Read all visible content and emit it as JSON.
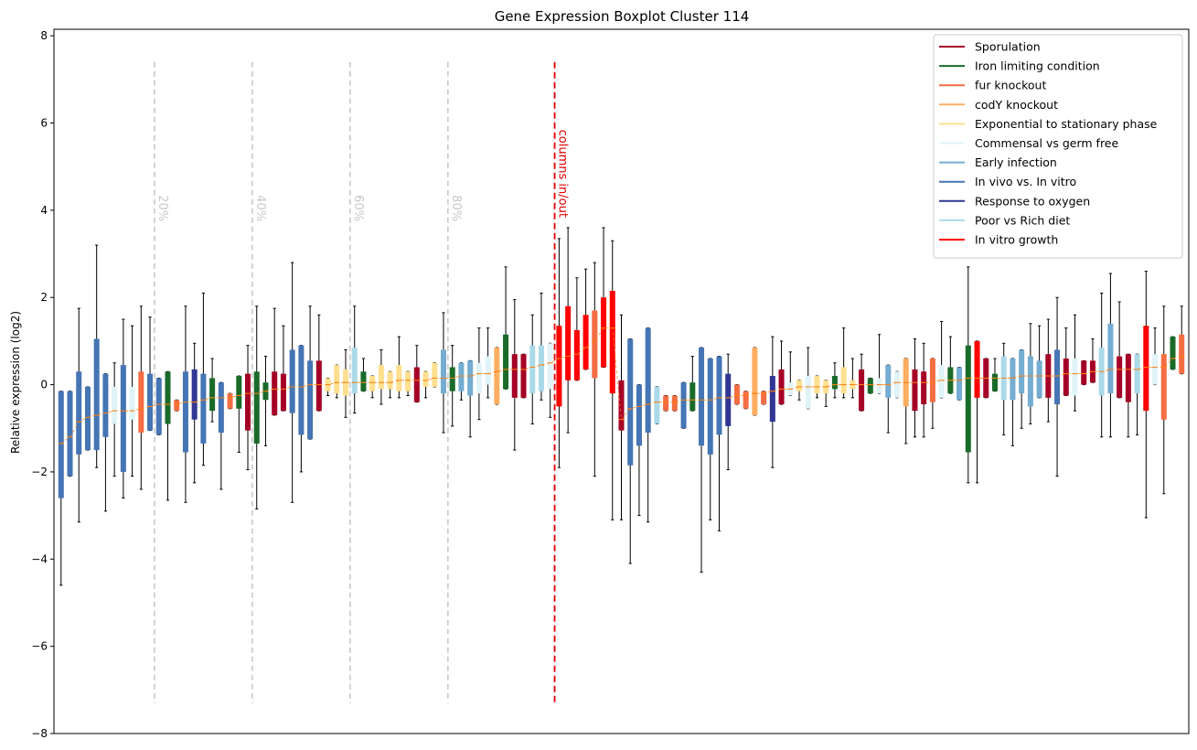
{
  "chart_data": {
    "type": "boxplot",
    "title": "Gene Expression Boxplot Cluster 114",
    "ylabel": "Relative expression (log2)",
    "xlabel": "",
    "ylim": [
      -8,
      8.15
    ],
    "yticks": [
      -8,
      -6,
      -4,
      -2,
      0,
      2,
      4,
      6,
      8
    ],
    "ytick_labels": [
      "−8",
      "−6",
      "−4",
      "−2",
      "0",
      "2",
      "4",
      "6",
      "8"
    ],
    "legend_position": "top-right",
    "categories": [
      {
        "key": "spor",
        "name": "Sporulation",
        "color": "#a50026"
      },
      {
        "key": "iron",
        "name": "Iron limiting condition",
        "color": "#1a6b2a"
      },
      {
        "key": "fur",
        "name": "fur knockout",
        "color": "#f46d43"
      },
      {
        "key": "cody",
        "name": "codY knockout",
        "color": "#fdae61"
      },
      {
        "key": "exp",
        "name": "Exponential to stationary phase",
        "color": "#fee090"
      },
      {
        "key": "comm",
        "name": "Commensal vs germ free",
        "color": "#e0f3f8"
      },
      {
        "key": "early",
        "name": "Early infection",
        "color": "#74add1"
      },
      {
        "key": "vivo",
        "name": "In vivo vs. In vitro",
        "color": "#4575b4"
      },
      {
        "key": "oxy",
        "name": "Response to oxygen",
        "color": "#313695"
      },
      {
        "key": "diet",
        "name": "Poor vs Rich diet",
        "color": "#abd9e9"
      },
      {
        "key": "growth",
        "name": "In vitro growth",
        "color": "#ff0000"
      }
    ],
    "percentile_markers": [
      {
        "label": "20%",
        "position": 11
      },
      {
        "label": "40%",
        "position": 22
      },
      {
        "label": "60%",
        "position": 33
      },
      {
        "label": "80%",
        "position": 44
      }
    ],
    "split_marker": {
      "label": "columns in/out",
      "position": 56,
      "color": "#e00000"
    },
    "marker_y_range": [
      -7.3,
      7.4
    ],
    "median_color": "#ff7f0e",
    "boxes": [
      {
        "c": "vivo",
        "q1": -2.6,
        "q3": -0.15,
        "lo": -4.6,
        "hi": -0.15,
        "med": -1.35
      },
      {
        "c": "vivo",
        "q1": -2.1,
        "q3": -0.15,
        "lo": -2.1,
        "hi": -0.15,
        "med": -1.2
      },
      {
        "c": "vivo",
        "q1": -1.6,
        "q3": 0.3,
        "lo": -3.15,
        "hi": 1.75,
        "med": -0.85
      },
      {
        "c": "vivo",
        "q1": -1.5,
        "q3": -0.05,
        "lo": -1.5,
        "hi": -0.05,
        "med": -0.75
      },
      {
        "c": "vivo",
        "q1": -1.5,
        "q3": 1.05,
        "lo": -1.9,
        "hi": 3.2,
        "med": -0.7
      },
      {
        "c": "vivo",
        "q1": -1.2,
        "q3": 0.25,
        "lo": -2.9,
        "hi": 0.25,
        "med": -0.65
      },
      {
        "c": "comm",
        "q1": -0.9,
        "q3": -0.05,
        "lo": -2.1,
        "hi": 0.5,
        "med": -0.6
      },
      {
        "c": "vivo",
        "q1": -2.0,
        "q3": 0.45,
        "lo": -2.6,
        "hi": 1.5,
        "med": -0.6
      },
      {
        "c": "comm",
        "q1": -0.8,
        "q3": -0.05,
        "lo": -2.1,
        "hi": 1.35,
        "med": -0.6
      },
      {
        "c": "fur",
        "q1": -1.1,
        "q3": 0.3,
        "lo": -2.4,
        "hi": 1.8,
        "med": -0.55
      },
      {
        "c": "vivo",
        "q1": -1.05,
        "q3": 0.25,
        "lo": -1.05,
        "hi": 1.55,
        "med": -0.5
      },
      {
        "c": "vivo",
        "q1": -1.15,
        "q3": 0.15,
        "lo": -1.15,
        "hi": 0.15,
        "med": -0.45
      },
      {
        "c": "iron",
        "q1": -0.9,
        "q3": 0.3,
        "lo": -2.65,
        "hi": 0.3,
        "med": -0.45
      },
      {
        "c": "fur",
        "q1": -0.6,
        "q3": -0.35,
        "lo": -0.6,
        "hi": -0.35,
        "med": -0.45
      },
      {
        "c": "vivo",
        "q1": -1.55,
        "q3": 0.3,
        "lo": -2.7,
        "hi": 1.8,
        "med": -0.4
      },
      {
        "c": "oxy",
        "q1": -0.8,
        "q3": 0.35,
        "lo": -2.25,
        "hi": 0.95,
        "med": -0.4
      },
      {
        "c": "vivo",
        "q1": -1.35,
        "q3": 0.25,
        "lo": -1.85,
        "hi": 2.1,
        "med": -0.35
      },
      {
        "c": "iron",
        "q1": -0.6,
        "q3": 0.15,
        "lo": -0.85,
        "hi": 0.6,
        "med": -0.3
      },
      {
        "c": "vivo",
        "q1": -1.1,
        "q3": 0.05,
        "lo": -2.4,
        "hi": 0.05,
        "med": -0.3
      },
      {
        "c": "fur",
        "q1": -0.55,
        "q3": -0.2,
        "lo": -0.55,
        "hi": -0.2,
        "med": -0.3
      },
      {
        "c": "iron",
        "q1": -0.55,
        "q3": 0.2,
        "lo": -1.55,
        "hi": 0.2,
        "med": -0.25
      },
      {
        "c": "spor",
        "q1": -1.05,
        "q3": 0.25,
        "lo": -1.95,
        "hi": 0.9,
        "med": -0.2
      },
      {
        "c": "iron",
        "q1": -1.35,
        "q3": 0.3,
        "lo": -2.85,
        "hi": 1.8,
        "med": -0.2
      },
      {
        "c": "iron",
        "q1": -0.35,
        "q3": 0.05,
        "lo": -1.4,
        "hi": 0.65,
        "med": -0.15
      },
      {
        "c": "spor",
        "q1": -0.7,
        "q3": 0.3,
        "lo": -0.7,
        "hi": 1.75,
        "med": -0.1
      },
      {
        "c": "spor",
        "q1": -0.6,
        "q3": 0.25,
        "lo": -0.6,
        "hi": 1.35,
        "med": -0.1
      },
      {
        "c": "vivo",
        "q1": -0.65,
        "q3": 0.8,
        "lo": -2.7,
        "hi": 2.8,
        "med": -0.05
      },
      {
        "c": "vivo",
        "q1": -1.15,
        "q3": 0.9,
        "lo": -2.0,
        "hi": 0.9,
        "med": -0.05
      },
      {
        "c": "vivo",
        "q1": -1.25,
        "q3": 0.55,
        "lo": -1.25,
        "hi": 1.8,
        "med": 0.0
      },
      {
        "c": "spor",
        "q1": -0.6,
        "q3": 0.55,
        "lo": -0.6,
        "hi": 1.6,
        "med": 0.0
      },
      {
        "c": "exp",
        "q1": -0.15,
        "q3": 0.15,
        "lo": -0.25,
        "hi": 0.15,
        "med": 0.0
      },
      {
        "c": "exp",
        "q1": -0.2,
        "q3": 0.45,
        "lo": -0.3,
        "hi": 0.45,
        "med": 0.05
      },
      {
        "c": "exp",
        "q1": -0.25,
        "q3": 0.35,
        "lo": -0.75,
        "hi": 0.8,
        "med": 0.05
      },
      {
        "c": "diet",
        "q1": -0.2,
        "q3": 0.85,
        "lo": -0.65,
        "hi": 1.8,
        "med": 0.05
      },
      {
        "c": "iron",
        "q1": -0.15,
        "q3": 0.3,
        "lo": -0.15,
        "hi": 0.6,
        "med": 0.05
      },
      {
        "c": "exp",
        "q1": -0.15,
        "q3": 0.2,
        "lo": -0.3,
        "hi": 0.2,
        "med": 0.05
      },
      {
        "c": "exp",
        "q1": -0.1,
        "q3": 0.45,
        "lo": -0.45,
        "hi": 0.8,
        "med": 0.05
      },
      {
        "c": "exp",
        "q1": -0.1,
        "q3": 0.3,
        "lo": -0.3,
        "hi": 0.3,
        "med": 0.05
      },
      {
        "c": "exp",
        "q1": -0.15,
        "q3": 0.45,
        "lo": -0.3,
        "hi": 1.1,
        "med": 0.1
      },
      {
        "c": "exp",
        "q1": -0.15,
        "q3": 0.3,
        "lo": -0.25,
        "hi": 0.3,
        "med": 0.1
      },
      {
        "c": "spor",
        "q1": -0.4,
        "q3": 0.4,
        "lo": -0.4,
        "hi": 0.9,
        "med": 0.1
      },
      {
        "c": "exp",
        "q1": -0.05,
        "q3": 0.3,
        "lo": -0.3,
        "hi": 0.3,
        "med": 0.1
      },
      {
        "c": "exp",
        "q1": -0.05,
        "q3": 0.5,
        "lo": -0.05,
        "hi": 0.5,
        "med": 0.15
      },
      {
        "c": "early",
        "q1": -0.2,
        "q3": 0.8,
        "lo": -1.1,
        "hi": 1.65,
        "med": 0.15
      },
      {
        "c": "iron",
        "q1": -0.15,
        "q3": 0.4,
        "lo": -0.95,
        "hi": 0.9,
        "med": 0.15
      },
      {
        "c": "early",
        "q1": -0.15,
        "q3": 0.5,
        "lo": -0.35,
        "hi": 0.5,
        "med": 0.2
      },
      {
        "c": "early",
        "q1": -0.25,
        "q3": 0.55,
        "lo": -1.2,
        "hi": 0.55,
        "med": 0.2
      },
      {
        "c": "comm",
        "q1": -0.2,
        "q3": 0.5,
        "lo": -0.8,
        "hi": 1.3,
        "med": 0.25
      },
      {
        "c": "comm",
        "q1": 0.0,
        "q3": 0.65,
        "lo": -0.3,
        "hi": 1.3,
        "med": 0.25
      },
      {
        "c": "cody",
        "q1": -0.45,
        "q3": 0.85,
        "lo": -0.45,
        "hi": 0.85,
        "med": 0.3
      },
      {
        "c": "iron",
        "q1": -0.1,
        "q3": 1.15,
        "lo": -0.1,
        "hi": 2.7,
        "med": 0.35
      },
      {
        "c": "spor",
        "q1": -0.3,
        "q3": 0.7,
        "lo": -1.5,
        "hi": 1.95,
        "med": 0.35
      },
      {
        "c": "spor",
        "q1": -0.3,
        "q3": 0.7,
        "lo": -0.3,
        "hi": 0.7,
        "med": 0.35
      },
      {
        "c": "diet",
        "q1": -0.2,
        "q3": 0.9,
        "lo": -0.9,
        "hi": 1.6,
        "med": 0.4
      },
      {
        "c": "diet",
        "q1": -0.15,
        "q3": 0.9,
        "lo": -0.35,
        "hi": 2.1,
        "med": 0.45
      },
      {
        "c": "comm",
        "q1": -0.1,
        "q3": 0.95,
        "lo": -0.75,
        "hi": 0.95,
        "med": 0.5
      },
      {
        "c": "growth",
        "q1": -0.5,
        "q3": 1.35,
        "lo": -1.9,
        "hi": 3.35,
        "med": 0.6
      },
      {
        "c": "growth",
        "q1": 0.1,
        "q3": 1.8,
        "lo": -1.1,
        "hi": 3.6,
        "med": 0.65
      },
      {
        "c": "growth",
        "q1": 0.1,
        "q3": 1.25,
        "lo": 0.1,
        "hi": 2.45,
        "med": 0.7
      },
      {
        "c": "growth",
        "q1": 0.35,
        "q3": 1.6,
        "lo": 0.35,
        "hi": 2.65,
        "med": 0.85
      },
      {
        "c": "fur",
        "q1": 0.15,
        "q3": 1.7,
        "lo": -2.1,
        "hi": 2.8,
        "med": 1.0
      },
      {
        "c": "growth",
        "q1": 0.4,
        "q3": 2.0,
        "lo": 0.4,
        "hi": 3.6,
        "med": 1.3
      },
      {
        "c": "growth",
        "q1": -0.2,
        "q3": 2.15,
        "lo": -3.1,
        "hi": 3.3,
        "med": 1.3
      },
      {
        "c": "spor",
        "q1": -1.05,
        "q3": 0.1,
        "lo": -3.1,
        "hi": 1.6,
        "med": -0.8
      },
      {
        "c": "vivo",
        "q1": -1.85,
        "q3": 1.05,
        "lo": -4.1,
        "hi": 1.05,
        "med": -0.55
      },
      {
        "c": "vivo",
        "q1": -1.4,
        "q3": 0.0,
        "lo": -3.0,
        "hi": 0.0,
        "med": -0.5
      },
      {
        "c": "vivo",
        "q1": -1.1,
        "q3": 1.3,
        "lo": -3.15,
        "hi": 1.3,
        "med": -0.45
      },
      {
        "c": "diet",
        "q1": -0.9,
        "q3": -0.05,
        "lo": -0.9,
        "hi": -0.05,
        "med": -0.4
      },
      {
        "c": "fur",
        "q1": -0.6,
        "q3": -0.25,
        "lo": -0.6,
        "hi": -0.25,
        "med": -0.4
      },
      {
        "c": "fur",
        "q1": -0.6,
        "q3": -0.25,
        "lo": -0.6,
        "hi": -0.25,
        "med": -0.4
      },
      {
        "c": "vivo",
        "q1": -1.0,
        "q3": 0.05,
        "lo": -1.0,
        "hi": 0.05,
        "med": -0.35
      },
      {
        "c": "iron",
        "q1": -0.6,
        "q3": 0.05,
        "lo": -0.6,
        "hi": 0.65,
        "med": -0.35
      },
      {
        "c": "vivo",
        "q1": -1.4,
        "q3": 0.85,
        "lo": -4.3,
        "hi": 0.85,
        "med": -0.35
      },
      {
        "c": "vivo",
        "q1": -1.6,
        "q3": 0.6,
        "lo": -3.1,
        "hi": 0.6,
        "med": -0.35
      },
      {
        "c": "vivo",
        "q1": -1.15,
        "q3": 0.65,
        "lo": -3.35,
        "hi": 0.65,
        "med": -0.3
      },
      {
        "c": "oxy",
        "q1": -0.95,
        "q3": 0.25,
        "lo": -1.95,
        "hi": 0.7,
        "med": -0.3
      },
      {
        "c": "fur",
        "q1": -0.45,
        "q3": 0.0,
        "lo": -0.45,
        "hi": 0.0,
        "med": -0.25
      },
      {
        "c": "fur",
        "q1": -0.55,
        "q3": -0.15,
        "lo": -0.55,
        "hi": -0.15,
        "med": -0.25
      },
      {
        "c": "cody",
        "q1": -0.7,
        "q3": 0.85,
        "lo": -0.7,
        "hi": 0.85,
        "med": -0.2
      },
      {
        "c": "fur",
        "q1": -0.45,
        "q3": -0.15,
        "lo": -0.45,
        "hi": -0.15,
        "med": -0.2
      },
      {
        "c": "oxy",
        "q1": -0.85,
        "q3": 0.2,
        "lo": -1.9,
        "hi": 1.1,
        "med": -0.15
      },
      {
        "c": "spor",
        "q1": -0.45,
        "q3": 0.35,
        "lo": -0.45,
        "hi": 1.0,
        "med": -0.1
      },
      {
        "c": "comm",
        "q1": -0.25,
        "q3": 0.05,
        "lo": -0.25,
        "hi": 0.75,
        "med": -0.1
      },
      {
        "c": "exp",
        "q1": -0.15,
        "q3": 0.1,
        "lo": -0.35,
        "hi": 0.1,
        "med": -0.05
      },
      {
        "c": "comm",
        "q1": -0.55,
        "q3": 0.2,
        "lo": -0.55,
        "hi": 0.85,
        "med": -0.05
      },
      {
        "c": "exp",
        "q1": -0.2,
        "q3": 0.2,
        "lo": -0.3,
        "hi": 0.2,
        "med": -0.05
      },
      {
        "c": "exp",
        "q1": -0.2,
        "q3": 0.1,
        "lo": -0.5,
        "hi": 0.1,
        "med": -0.05
      },
      {
        "c": "iron",
        "q1": -0.1,
        "q3": 0.2,
        "lo": -0.3,
        "hi": 0.5,
        "med": 0.0
      },
      {
        "c": "exp",
        "q1": -0.2,
        "q3": 0.4,
        "lo": -0.3,
        "hi": 1.3,
        "med": 0.0
      },
      {
        "c": "exp",
        "q1": -0.1,
        "q3": 0.1,
        "lo": -0.3,
        "hi": 0.6,
        "med": 0.0
      },
      {
        "c": "spor",
        "q1": -0.6,
        "q3": 0.35,
        "lo": -0.6,
        "hi": 0.7,
        "med": 0.0
      },
      {
        "c": "iron",
        "q1": -0.2,
        "q3": 0.15,
        "lo": -0.2,
        "hi": 0.15,
        "med": 0.0
      },
      {
        "c": "comm",
        "q1": -0.2,
        "q3": 0.15,
        "lo": -0.2,
        "hi": 1.15,
        "med": 0.0
      },
      {
        "c": "early",
        "q1": -0.3,
        "q3": 0.45,
        "lo": -1.1,
        "hi": 0.45,
        "med": 0.0
      },
      {
        "c": "comm",
        "q1": -0.3,
        "q3": 0.3,
        "lo": -0.3,
        "hi": 0.3,
        "med": 0.05
      },
      {
        "c": "cody",
        "q1": -0.5,
        "q3": 0.6,
        "lo": -1.35,
        "hi": 0.6,
        "med": 0.05
      },
      {
        "c": "spor",
        "q1": -0.6,
        "q3": 0.35,
        "lo": -1.2,
        "hi": 1.05,
        "med": 0.05
      },
      {
        "c": "spor",
        "q1": -0.45,
        "q3": 0.3,
        "lo": -1.2,
        "hi": 0.95,
        "med": 0.05
      },
      {
        "c": "fur",
        "q1": -0.4,
        "q3": 0.6,
        "lo": -1.0,
        "hi": 0.6,
        "med": 0.05
      },
      {
        "c": "comm",
        "q1": -0.3,
        "q3": 0.45,
        "lo": -0.3,
        "hi": 1.45,
        "med": 0.1
      },
      {
        "c": "iron",
        "q1": -0.2,
        "q3": 0.4,
        "lo": -0.2,
        "hi": 1.1,
        "med": 0.1
      },
      {
        "c": "early",
        "q1": -0.35,
        "q3": 0.4,
        "lo": -0.35,
        "hi": 0.4,
        "med": 0.1
      },
      {
        "c": "iron",
        "q1": -1.55,
        "q3": 0.9,
        "lo": -2.25,
        "hi": 2.7,
        "med": 0.15
      },
      {
        "c": "growth",
        "q1": -0.3,
        "q3": 1.0,
        "lo": -2.25,
        "hi": 1.0,
        "med": 0.15
      },
      {
        "c": "spor",
        "q1": -0.3,
        "q3": 0.6,
        "lo": -0.3,
        "hi": 0.6,
        "med": 0.15
      },
      {
        "c": "iron",
        "q1": -0.15,
        "q3": 0.25,
        "lo": -0.15,
        "hi": 0.6,
        "med": 0.15
      },
      {
        "c": "diet",
        "q1": -0.35,
        "q3": 0.65,
        "lo": -1.15,
        "hi": 0.95,
        "med": 0.15
      },
      {
        "c": "early",
        "q1": -0.35,
        "q3": 0.6,
        "lo": -1.4,
        "hi": 0.6,
        "med": 0.15
      },
      {
        "c": "early",
        "q1": -0.2,
        "q3": 0.8,
        "lo": -1.0,
        "hi": 0.8,
        "med": 0.2
      },
      {
        "c": "early",
        "q1": -0.5,
        "q3": 0.65,
        "lo": -0.9,
        "hi": 1.4,
        "med": 0.2
      },
      {
        "c": "early",
        "q1": -0.3,
        "q3": 0.55,
        "lo": -0.3,
        "hi": 1.35,
        "med": 0.2
      },
      {
        "c": "spor",
        "q1": -0.3,
        "q3": 0.7,
        "lo": -0.85,
        "hi": 1.5,
        "med": 0.2
      },
      {
        "c": "vivo",
        "q1": -0.45,
        "q3": 0.8,
        "lo": -2.1,
        "hi": 2.0,
        "med": 0.2
      },
      {
        "c": "spor",
        "q1": -0.25,
        "q3": 0.6,
        "lo": -0.25,
        "hi": 1.3,
        "med": 0.25
      },
      {
        "c": "comm",
        "q1": -0.25,
        "q3": 0.6,
        "lo": -0.6,
        "hi": 1.6,
        "med": 0.25
      },
      {
        "c": "spor",
        "q1": 0.0,
        "q3": 0.55,
        "lo": 0.0,
        "hi": 0.55,
        "med": 0.25
      },
      {
        "c": "spor",
        "q1": 0.05,
        "q3": 0.55,
        "lo": 0.05,
        "hi": 1.05,
        "med": 0.3
      },
      {
        "c": "diet",
        "q1": -0.25,
        "q3": 0.85,
        "lo": -1.2,
        "hi": 2.1,
        "med": 0.3
      },
      {
        "c": "early",
        "q1": -0.2,
        "q3": 1.4,
        "lo": -1.2,
        "hi": 2.55,
        "med": 0.35
      },
      {
        "c": "spor",
        "q1": -0.3,
        "q3": 0.65,
        "lo": -0.3,
        "hi": 1.9,
        "med": 0.35
      },
      {
        "c": "spor",
        "q1": -0.4,
        "q3": 0.7,
        "lo": -1.2,
        "hi": 0.7,
        "med": 0.35
      },
      {
        "c": "diet",
        "q1": -0.2,
        "q3": 0.7,
        "lo": -1.15,
        "hi": 0.7,
        "med": 0.35
      },
      {
        "c": "growth",
        "q1": -0.6,
        "q3": 1.35,
        "lo": -3.05,
        "hi": 2.6,
        "med": 0.4
      },
      {
        "c": "comm",
        "q1": 0.0,
        "q3": 0.7,
        "lo": 0.0,
        "hi": 1.3,
        "med": 0.4
      },
      {
        "c": "fur",
        "q1": -0.8,
        "q3": 0.7,
        "lo": -2.5,
        "hi": 1.8,
        "med": 0.4
      },
      {
        "c": "iron",
        "q1": 0.35,
        "q3": 1.1,
        "lo": 0.35,
        "hi": 1.1,
        "med": 0.6
      },
      {
        "c": "fur",
        "q1": 0.25,
        "q3": 1.15,
        "lo": 0.25,
        "hi": 1.8,
        "med": 0.65
      }
    ]
  }
}
